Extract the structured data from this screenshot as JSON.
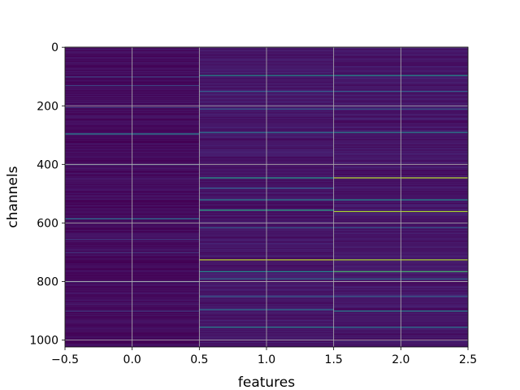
{
  "chart_data": {
    "type": "heatmap",
    "title": "",
    "xlabel": "features",
    "ylabel": "channels",
    "xlim": [
      -0.5,
      2.5
    ],
    "ylim": [
      1023.5,
      -0.5
    ],
    "x_ticks": [
      -0.5,
      0.0,
      0.5,
      1.0,
      1.5,
      2.0,
      2.5
    ],
    "x_tick_labels": [
      "−0.5",
      "0.0",
      "0.5",
      "1.0",
      "1.5",
      "2.0",
      "2.5"
    ],
    "y_ticks": [
      0,
      200,
      400,
      600,
      800,
      1000
    ],
    "y_tick_labels": [
      "0",
      "200",
      "400",
      "600",
      "800",
      "1000"
    ],
    "grid": true,
    "colormap": "viridis",
    "n_rows": 1024,
    "columns": [
      {
        "feature": 0,
        "base_level": 0.04,
        "highlights": [
          {
            "channel": 100,
            "value": 0.2
          },
          {
            "channel": 130,
            "value": 0.22
          },
          {
            "channel": 205,
            "value": 0.18
          },
          {
            "channel": 295,
            "value": 0.45
          },
          {
            "channel": 400,
            "value": 0.2
          },
          {
            "channel": 585,
            "value": 0.38
          },
          {
            "channel": 655,
            "value": 0.18
          },
          {
            "channel": 700,
            "value": 0.18
          },
          {
            "channel": 800,
            "value": 0.22
          },
          {
            "channel": 900,
            "value": 0.2
          }
        ]
      },
      {
        "feature": 1,
        "base_level": 0.08,
        "highlights": [
          {
            "channel": 95,
            "value": 0.5
          },
          {
            "channel": 150,
            "value": 0.3
          },
          {
            "channel": 210,
            "value": 0.28
          },
          {
            "channel": 290,
            "value": 0.4
          },
          {
            "channel": 445,
            "value": 0.55
          },
          {
            "channel": 480,
            "value": 0.3
          },
          {
            "channel": 520,
            "value": 0.45
          },
          {
            "channel": 555,
            "value": 0.62
          },
          {
            "channel": 615,
            "value": 0.3
          },
          {
            "channel": 725,
            "value": 0.9
          },
          {
            "channel": 765,
            "value": 0.5
          },
          {
            "channel": 790,
            "value": 0.35
          },
          {
            "channel": 850,
            "value": 0.3
          },
          {
            "channel": 895,
            "value": 0.4
          },
          {
            "channel": 955,
            "value": 0.45
          }
        ]
      },
      {
        "feature": 2,
        "base_level": 0.08,
        "highlights": [
          {
            "channel": 95,
            "value": 0.5
          },
          {
            "channel": 150,
            "value": 0.3
          },
          {
            "channel": 210,
            "value": 0.28
          },
          {
            "channel": 290,
            "value": 0.45
          },
          {
            "channel": 445,
            "value": 0.9
          },
          {
            "channel": 520,
            "value": 0.5
          },
          {
            "channel": 560,
            "value": 0.88
          },
          {
            "channel": 615,
            "value": 0.3
          },
          {
            "channel": 725,
            "value": 0.88
          },
          {
            "channel": 765,
            "value": 0.7
          },
          {
            "channel": 790,
            "value": 0.35
          },
          {
            "channel": 850,
            "value": 0.3
          },
          {
            "channel": 900,
            "value": 0.45
          },
          {
            "channel": 955,
            "value": 0.4
          }
        ]
      }
    ]
  }
}
